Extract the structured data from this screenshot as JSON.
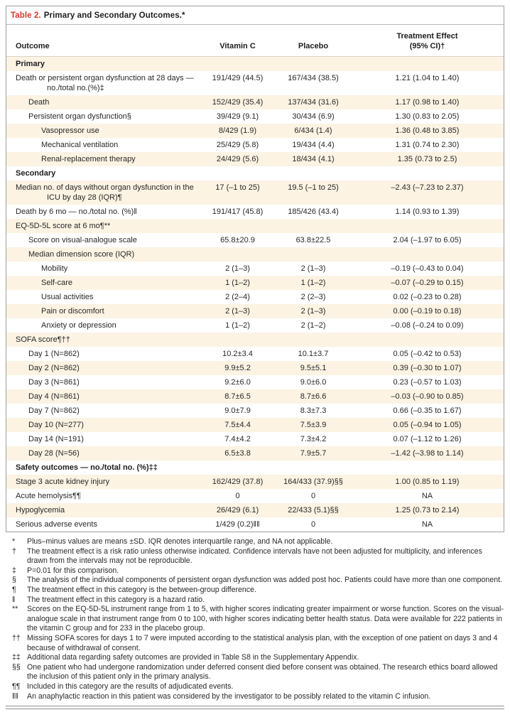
{
  "colors": {
    "accent_red": "#d5382d",
    "row_stripe_cream": "#fcf3e3",
    "frame_border": "#9f9f9f"
  },
  "table": {
    "title_label": "Table 2.",
    "title_text": "Primary and Secondary Outcomes.*",
    "columns": {
      "outcome": "Outcome",
      "vitamin_c": "Vitamin C",
      "placebo": "Placebo",
      "treatment_line1": "Treatment Effect",
      "treatment_line2": "(95% CI)†"
    },
    "rows": [
      {
        "label": "Primary",
        "indent": 0,
        "bold": true,
        "vitamin_c": "",
        "placebo": "",
        "effect": ""
      },
      {
        "label": "Death or persistent organ dysfunction at 28 days — no./total no.(%)‡",
        "indent": 0,
        "bold": false,
        "vitamin_c": "191/429 (44.5)",
        "placebo": "167/434 (38.5)",
        "effect": "1.21 (1.04 to 1.40)"
      },
      {
        "label": "Death",
        "indent": 1,
        "bold": false,
        "vitamin_c": "152/429 (35.4)",
        "placebo": "137/434 (31.6)",
        "effect": "1.17 (0.98 to 1.40)"
      },
      {
        "label": "Persistent organ dysfunction§",
        "indent": 1,
        "bold": false,
        "vitamin_c": "39/429 (9.1)",
        "placebo": "30/434 (6.9)",
        "effect": "1.30 (0.83 to 2.05)"
      },
      {
        "label": "Vasopressor use",
        "indent": 2,
        "bold": false,
        "vitamin_c": "8/429 (1.9)",
        "placebo": "6/434 (1.4)",
        "effect": "1.36 (0.48 to 3.85)"
      },
      {
        "label": "Mechanical ventilation",
        "indent": 2,
        "bold": false,
        "vitamin_c": "25/429 (5.8)",
        "placebo": "19/434 (4.4)",
        "effect": "1.31 (0.74 to 2.30)"
      },
      {
        "label": "Renal-replacement therapy",
        "indent": 2,
        "bold": false,
        "vitamin_c": "24/429 (5.6)",
        "placebo": "18/434 (4.1)",
        "effect": "1.35 (0.73 to 2.5)"
      },
      {
        "label": "Secondary",
        "indent": 0,
        "bold": true,
        "vitamin_c": "",
        "placebo": "",
        "effect": ""
      },
      {
        "label": "Median no. of days without organ dysfunction in the ICU by day 28 (IQR)¶",
        "indent": 0,
        "bold": false,
        "vitamin_c": "17 (–1 to 25)",
        "placebo": "19.5 (–1 to 25)",
        "effect": "–2.43 (–7.23 to 2.37)"
      },
      {
        "label": "Death by 6 mo — no./total no. (%)‖",
        "indent": 0,
        "bold": false,
        "vitamin_c": "191/417 (45.8)",
        "placebo": "185/426 (43.4)",
        "effect": "1.14 (0.93 to 1.39)"
      },
      {
        "label": "EQ-5D-5L score at 6 mo¶**",
        "indent": 0,
        "bold": false,
        "vitamin_c": "",
        "placebo": "",
        "effect": ""
      },
      {
        "label": "Score on visual-analogue scale",
        "indent": 1,
        "bold": false,
        "vitamin_c": "65.8±20.9",
        "placebo": "63.8±22.5",
        "effect": "2.04 (–1.97 to 6.05)"
      },
      {
        "label": "Median dimension score (IQR)",
        "indent": 1,
        "bold": false,
        "vitamin_c": "",
        "placebo": "",
        "effect": ""
      },
      {
        "label": "Mobility",
        "indent": 2,
        "bold": false,
        "vitamin_c": "2 (1–3)",
        "placebo": "2 (1–3)",
        "effect": "–0.19 (–0.43 to 0.04)"
      },
      {
        "label": "Self-care",
        "indent": 2,
        "bold": false,
        "vitamin_c": "1 (1–2)",
        "placebo": "1 (1–2)",
        "effect": "–0.07 (–0.29 to 0.15)"
      },
      {
        "label": "Usual activities",
        "indent": 2,
        "bold": false,
        "vitamin_c": "2 (2–4)",
        "placebo": "2 (2–3)",
        "effect": "0.02 (–0.23 to 0.28)"
      },
      {
        "label": "Pain or discomfort",
        "indent": 2,
        "bold": false,
        "vitamin_c": "2 (1–3)",
        "placebo": "2 (1–3)",
        "effect": "0.00 (–0.19 to 0.18)"
      },
      {
        "label": "Anxiety or depression",
        "indent": 2,
        "bold": false,
        "vitamin_c": "1 (1–2)",
        "placebo": "2 (1–2)",
        "effect": "–0.08 (–0.24 to 0.09)"
      },
      {
        "label": "SOFA score¶††",
        "indent": 0,
        "bold": false,
        "vitamin_c": "",
        "placebo": "",
        "effect": ""
      },
      {
        "label": "Day 1 (N=862)",
        "indent": 1,
        "bold": false,
        "vitamin_c": "10.2±3.4",
        "placebo": "10.1±3.7",
        "effect": "0.05 (–0.42 to 0.53)"
      },
      {
        "label": "Day 2 (N=862)",
        "indent": 1,
        "bold": false,
        "vitamin_c": "9.9±5.2",
        "placebo": "9.5±5.1",
        "effect": "0.39 (–0.30 to 1.07)"
      },
      {
        "label": "Day 3 (N=861)",
        "indent": 1,
        "bold": false,
        "vitamin_c": "9.2±6.0",
        "placebo": "9.0±6.0",
        "effect": "0.23 (–0.57 to 1.03)"
      },
      {
        "label": "Day 4 (N=861)",
        "indent": 1,
        "bold": false,
        "vitamin_c": "8.7±6.5",
        "placebo": "8.7±6.6",
        "effect": "–0.03 (–0.90 to 0.85)"
      },
      {
        "label": "Day 7 (N=862)",
        "indent": 1,
        "bold": false,
        "vitamin_c": "9.0±7.9",
        "placebo": "8.3±7.3",
        "effect": "0.66 (–0.35 to 1.67)"
      },
      {
        "label": "Day 10 (N=277)",
        "indent": 1,
        "bold": false,
        "vitamin_c": "7.5±4.4",
        "placebo": "7.5±3.9",
        "effect": "0.05 (–0.94 to 1.05)"
      },
      {
        "label": "Day 14 (N=191)",
        "indent": 1,
        "bold": false,
        "vitamin_c": "7.4±4.2",
        "placebo": "7.3±4.2",
        "effect": "0.07 (–1.12 to 1.26)"
      },
      {
        "label": "Day 28 (N=56)",
        "indent": 1,
        "bold": false,
        "vitamin_c": "6.5±3.8",
        "placebo": "7.9±5.7",
        "effect": "–1.42 (–3.98 to 1.14)"
      },
      {
        "label": "Safety outcomes — no./total no. (%)‡‡",
        "indent": 0,
        "bold": true,
        "vitamin_c": "",
        "placebo": "",
        "effect": ""
      },
      {
        "label": "Stage 3 acute kidney injury",
        "indent": 0,
        "bold": false,
        "vitamin_c": "162/429 (37.8)",
        "placebo": "164/433 (37.9)§§",
        "effect": "1.00 (0.85 to 1.19)"
      },
      {
        "label": "Acute hemolysis¶¶",
        "indent": 0,
        "bold": false,
        "vitamin_c": "0",
        "placebo": "0",
        "effect": "NA"
      },
      {
        "label": "Hypoglycemia",
        "indent": 0,
        "bold": false,
        "vitamin_c": "26/429 (6.1)",
        "placebo": "22/433 (5.1)§§",
        "effect": "1.25 (0.73 to 2.14)"
      },
      {
        "label": "Serious adverse events",
        "indent": 0,
        "bold": false,
        "vitamin_c": "1/429 (0.2)‖‖",
        "placebo": "0",
        "effect": "NA"
      }
    ],
    "footnotes": [
      {
        "marker": "*",
        "text": "Plus–minus values are means ±SD. IQR denotes interquartile range, and NA not applicable."
      },
      {
        "marker": "†",
        "text": "The treatment effect is a risk ratio unless otherwise indicated. Confidence intervals have not been adjusted for multiplicity, and inferences drawn from the intervals may not be reproducible."
      },
      {
        "marker": "‡",
        "text": "P=0.01 for this comparison."
      },
      {
        "marker": "§",
        "text": "The analysis of the individual components of persistent organ dysfunction was added post hoc. Patients could have more than one component."
      },
      {
        "marker": "¶",
        "text": "The treatment effect in this category is the between-group difference."
      },
      {
        "marker": "‖",
        "text": "The treatment effect in this category is a hazard ratio."
      },
      {
        "marker": "**",
        "text": "Scores on the EQ-5D-5L instrument range from 1 to 5, with higher scores indicating greater impairment or worse function. Scores on the visual-analogue scale in that instrument range from 0 to 100, with higher scores indicating better health status. Data were available for 222 patients in the vitamin C group and for 233 in the placebo group."
      },
      {
        "marker": "††",
        "text": "Missing SOFA scores for days 1 to 7 were imputed according to the statistical analysis plan, with the exception of one patient on days 3 and 4 because of withdrawal of consent."
      },
      {
        "marker": "‡‡",
        "text": "Additional data regarding safety outcomes are provided in Table S8 in the Supplementary Appendix."
      },
      {
        "marker": "§§",
        "text": "One patient who had undergone randomization under deferred consent died before consent was obtained. The research ethics board allowed the inclusion of this patient only in the primary analysis."
      },
      {
        "marker": "¶¶",
        "text": "Included in this category are the results of adjudicated events."
      },
      {
        "marker": "‖‖",
        "text": "An anaphylactic reaction in this patient was considered by the investigator to be possibly related to the vitamin C infusion."
      }
    ]
  }
}
